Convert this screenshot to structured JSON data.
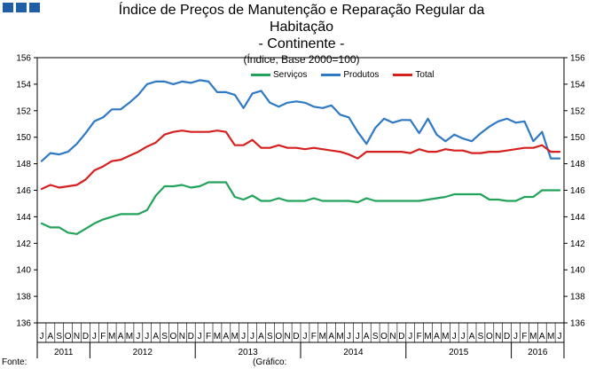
{
  "title_lines": [
    "Índice de Preços de Manutenção e Reparação Regular da",
    "Habitação",
    "- Continente -"
  ],
  "unit_label": "(Índice, Base 2000=100)",
  "footer": {
    "left": "Fonte:",
    "middle": "(Gráfico:"
  },
  "brand_color": "#1f5fa8",
  "chart_data": {
    "type": "line",
    "title": "Índice de Preços de Manutenção e Reparação Regular da Habitação - Continente -",
    "ylabel": "(Índice, Base 2000=100)",
    "ylim": [
      136,
      156
    ],
    "yticks": [
      136,
      138,
      140,
      142,
      144,
      146,
      148,
      150,
      152,
      154,
      156
    ],
    "legend_position": "top-center",
    "grid": false,
    "x": [
      "2011-07",
      "2011-08",
      "2011-09",
      "2011-10",
      "2011-11",
      "2011-12",
      "2012-01",
      "2012-02",
      "2012-03",
      "2012-04",
      "2012-05",
      "2012-06",
      "2012-07",
      "2012-08",
      "2012-09",
      "2012-10",
      "2012-11",
      "2012-12",
      "2013-01",
      "2013-02",
      "2013-03",
      "2013-04",
      "2013-05",
      "2013-06",
      "2013-07",
      "2013-08",
      "2013-09",
      "2013-10",
      "2013-11",
      "2013-12",
      "2014-01",
      "2014-02",
      "2014-03",
      "2014-04",
      "2014-05",
      "2014-06",
      "2014-07",
      "2014-08",
      "2014-09",
      "2014-10",
      "2014-11",
      "2014-12",
      "2015-01",
      "2015-02",
      "2015-03",
      "2015-04",
      "2015-05",
      "2015-06",
      "2015-07",
      "2015-08",
      "2015-09",
      "2015-10",
      "2015-11",
      "2015-12",
      "2016-01",
      "2016-02",
      "2016-03",
      "2016-04",
      "2016-05",
      "2016-06"
    ],
    "month_labels": [
      "J",
      "A",
      "S",
      "O",
      "N",
      "D",
      "J",
      "F",
      "M",
      "A",
      "M",
      "J",
      "J",
      "A",
      "S",
      "O",
      "N",
      "D",
      "J",
      "F",
      "M",
      "A",
      "M",
      "J",
      "J",
      "A",
      "S",
      "O",
      "N",
      "D",
      "J",
      "F",
      "M",
      "A",
      "M",
      "J",
      "J",
      "A",
      "S",
      "O",
      "N",
      "D",
      "J",
      "F",
      "M",
      "A",
      "M",
      "J",
      "J",
      "A",
      "S",
      "O",
      "N",
      "D",
      "J",
      "F",
      "M",
      "A",
      "M",
      "J"
    ],
    "year_labels": [
      {
        "label": "2011",
        "months": 6
      },
      {
        "label": "2012",
        "months": 12
      },
      {
        "label": "2013",
        "months": 12
      },
      {
        "label": "2014",
        "months": 12
      },
      {
        "label": "2015",
        "months": 12
      },
      {
        "label": "2016",
        "months": 6
      }
    ],
    "series": [
      {
        "name": "Serviços",
        "color": "#22a35a",
        "values": [
          143.5,
          143.2,
          143.2,
          142.8,
          142.7,
          143.1,
          143.5,
          143.8,
          144.0,
          144.2,
          144.2,
          144.2,
          144.5,
          145.6,
          146.3,
          146.3,
          146.4,
          146.2,
          146.3,
          146.6,
          146.6,
          146.6,
          145.5,
          145.3,
          145.6,
          145.2,
          145.2,
          145.4,
          145.2,
          145.2,
          145.2,
          145.4,
          145.2,
          145.2,
          145.2,
          145.2,
          145.1,
          145.4,
          145.2,
          145.2,
          145.2,
          145.2,
          145.2,
          145.2,
          145.3,
          145.4,
          145.5,
          145.7,
          145.7,
          145.7,
          145.7,
          145.3,
          145.3,
          145.2,
          145.2,
          145.5,
          145.5,
          146.0,
          146.0,
          146.0
        ]
      },
      {
        "name": "Produtos",
        "color": "#2f79c4",
        "values": [
          148.2,
          148.8,
          148.7,
          148.9,
          149.5,
          150.3,
          151.2,
          151.5,
          152.1,
          152.1,
          152.6,
          153.2,
          154.0,
          154.2,
          154.2,
          154.0,
          154.2,
          154.1,
          154.3,
          154.2,
          153.4,
          153.4,
          153.2,
          152.2,
          153.3,
          153.5,
          152.6,
          152.3,
          152.6,
          152.7,
          152.6,
          152.3,
          152.2,
          152.4,
          151.7,
          151.5,
          150.4,
          149.5,
          150.7,
          151.4,
          151.1,
          151.3,
          151.3,
          150.3,
          151.4,
          150.2,
          149.7,
          150.2,
          149.9,
          149.7,
          150.3,
          150.8,
          151.2,
          151.4,
          151.1,
          151.2,
          149.7,
          150.4,
          148.4,
          148.4
        ]
      },
      {
        "name": "Total",
        "color": "#d62020",
        "values": [
          146.1,
          146.4,
          146.2,
          146.3,
          146.4,
          146.8,
          147.5,
          147.8,
          148.2,
          148.3,
          148.6,
          148.9,
          149.3,
          149.6,
          150.2,
          150.4,
          150.5,
          150.4,
          150.4,
          150.4,
          150.5,
          150.4,
          149.4,
          149.4,
          149.8,
          149.2,
          149.2,
          149.4,
          149.2,
          149.2,
          149.1,
          149.2,
          149.1,
          149.0,
          148.9,
          148.7,
          148.4,
          148.9,
          148.9,
          148.9,
          148.9,
          148.9,
          148.8,
          149.1,
          148.9,
          148.9,
          149.1,
          149.0,
          149.0,
          148.8,
          148.8,
          148.9,
          148.9,
          149.0,
          149.1,
          149.2,
          149.2,
          149.4,
          148.9,
          148.9
        ]
      }
    ]
  }
}
